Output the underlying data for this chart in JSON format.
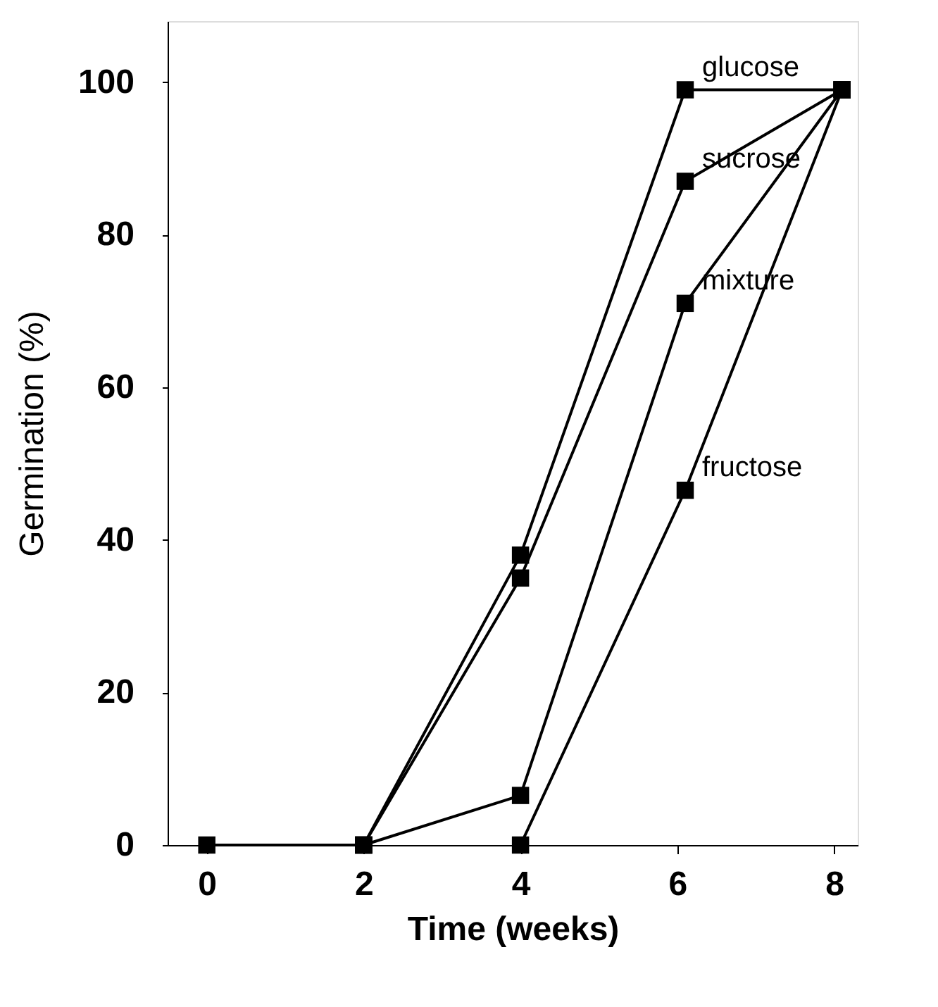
{
  "chart_data": {
    "type": "line",
    "xlabel": "Time (weeks)",
    "ylabel": "Germination (%)",
    "xlim": [
      -0.5,
      8.3
    ],
    "xticks": [
      0,
      2,
      4,
      6,
      8
    ],
    "ylim": [
      0,
      108
    ],
    "yticks": [
      0,
      20,
      40,
      60,
      80,
      100
    ],
    "marker": "square",
    "line_style": "solid",
    "grid": false,
    "legend": false,
    "series": [
      {
        "name": "glucose",
        "color": "#000000",
        "x": [
          0,
          2,
          4,
          6.1,
          8.1
        ],
        "values": [
          0,
          0,
          38,
          99,
          99
        ]
      },
      {
        "name": "sucrose",
        "color": "#000000",
        "x": [
          2,
          4,
          6.1,
          8.1
        ],
        "values": [
          0,
          35,
          87,
          99
        ]
      },
      {
        "name": "mixture",
        "color": "#000000",
        "x": [
          2,
          4,
          6.1,
          8.1
        ],
        "values": [
          0,
          6.5,
          71,
          99
        ]
      },
      {
        "name": "fructose",
        "color": "#000000",
        "x": [
          4,
          6.1,
          8.1
        ],
        "values": [
          0,
          46.5,
          99
        ]
      }
    ]
  }
}
